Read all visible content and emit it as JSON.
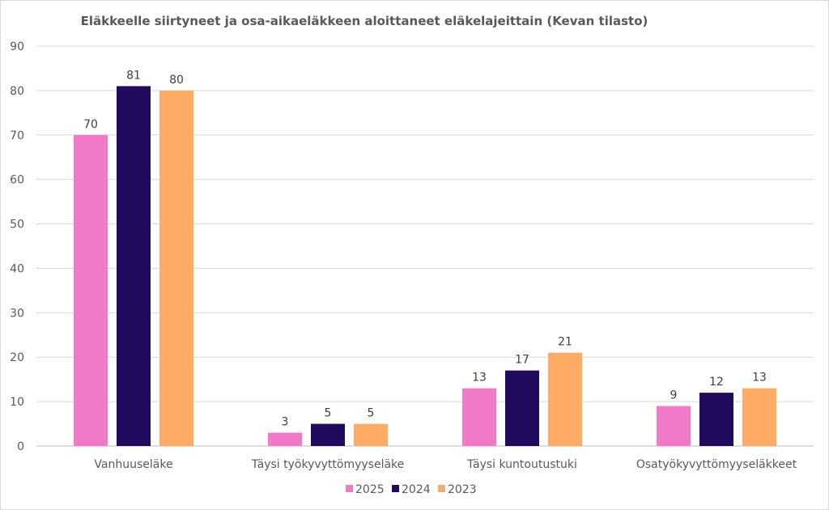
{
  "chart_data": {
    "type": "bar",
    "title": "Eläkkeelle siirtyneet ja osa-aikaeläkkeen aloittaneet eläkelajeittain (Kevan tilasto)",
    "xlabel": "",
    "ylabel": "",
    "categories": [
      "Vanhuuseläke",
      "Täysi työkyvyttömyyseläke",
      "Täysi kuntoutustuki",
      "Osatyökyvyttömyyseläkkeet"
    ],
    "series": [
      {
        "name": "2025",
        "color": "#f279c9",
        "values": [
          70,
          3,
          13,
          9
        ]
      },
      {
        "name": "2024",
        "color": "#220a5e",
        "values": [
          81,
          5,
          17,
          12
        ]
      },
      {
        "name": "2023",
        "color": "#ffab66",
        "values": [
          80,
          5,
          21,
          13
        ]
      }
    ],
    "ylim": [
      0,
      90
    ],
    "yticks": [
      0,
      10,
      20,
      30,
      40,
      50,
      60,
      70,
      80,
      90
    ],
    "grid": true,
    "legend": "bottom",
    "data_labels": true
  }
}
